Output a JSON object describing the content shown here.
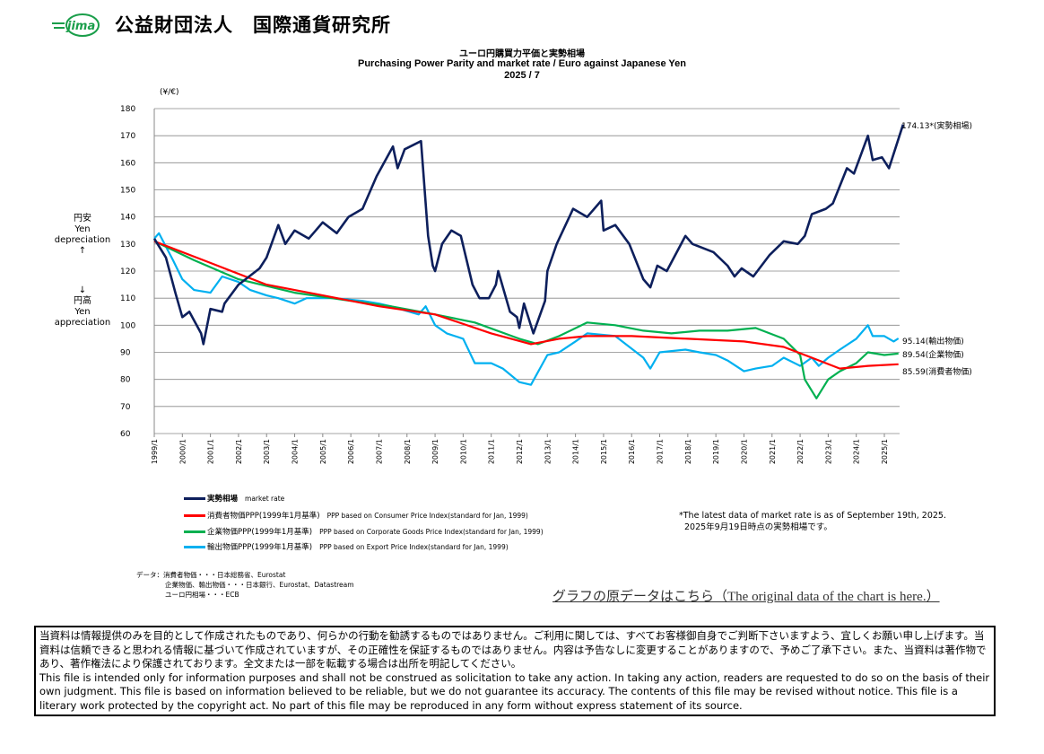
{
  "header": {
    "logo_text": "jima",
    "org_name": "公益財団法人　国際通貨研究所"
  },
  "chart_data": {
    "type": "line",
    "title_ja": "ユーロ円購買力平価と実勢相場",
    "title_en": "Purchasing Power Parity and market rate / Euro against Japanese Yen",
    "date": "2025 / 7",
    "ylabel": "(¥/€)",
    "ylim": [
      60,
      180
    ],
    "yticks": [
      60,
      70,
      80,
      90,
      100,
      110,
      120,
      130,
      140,
      150,
      160,
      170,
      180
    ],
    "xticks": [
      "1999/1",
      "2000/1",
      "2001/1",
      "2002/1",
      "2003/1",
      "2004/1",
      "2005/1",
      "2006/1",
      "2007/1",
      "2008/1",
      "2009/1",
      "2010/1",
      "2011/1",
      "2012/1",
      "2013/1",
      "2014/1",
      "2015/1",
      "2016/1",
      "2017/1",
      "2018/1",
      "2019/1",
      "2020/1",
      "2021/1",
      "2022/1",
      "2023/1",
      "2024/1",
      "2025/1"
    ],
    "grid": true,
    "side_up": {
      "ja": "円安",
      "en": "Yen depreciation",
      "arrow": "↑"
    },
    "side_down": {
      "ja": "円高",
      "en": "Yen appreciation",
      "arrow": "↓"
    },
    "series": [
      {
        "name": "実勢相場",
        "name_en": "market rate",
        "color": "#0d1f5c",
        "end_label": "174.13*(実勢相場)",
        "x": [
          "1999/1",
          "1999/6",
          "1999/10",
          "2000/1",
          "2000/4",
          "2000/9",
          "2000/10",
          "2001/1",
          "2001/6",
          "2001/7",
          "2002/1",
          "2002/4",
          "2002/10",
          "2003/1",
          "2003/6",
          "2003/9",
          "2004/1",
          "2004/7",
          "2004/10",
          "2005/1",
          "2005/7",
          "2005/12",
          "2006/6",
          "2006/12",
          "2007/7",
          "2007/9",
          "2007/12",
          "2008/7",
          "2008/10",
          "2008/12",
          "2009/1",
          "2009/4",
          "2009/8",
          "2009/12",
          "2010/5",
          "2010/8",
          "2010/12",
          "2011/3",
          "2011/4",
          "2011/9",
          "2011/12",
          "2012/1",
          "2012/3",
          "2012/7",
          "2012/12",
          "2013/1",
          "2013/5",
          "2013/12",
          "2014/6",
          "2014/12",
          "2015/1",
          "2015/6",
          "2015/12",
          "2016/6",
          "2016/9",
          "2016/12",
          "2017/4",
          "2017/12",
          "2018/3",
          "2018/12",
          "2019/6",
          "2019/9",
          "2019/12",
          "2020/5",
          "2020/12",
          "2021/6",
          "2021/12",
          "2022/3",
          "2022/6",
          "2022/9",
          "2022/12",
          "2023/3",
          "2023/9",
          "2023/12",
          "2024/6",
          "2024/8",
          "2024/12",
          "2025/3",
          "2025/6",
          "2025/9"
        ],
        "y": [
          132,
          125,
          112,
          103,
          105,
          97,
          93,
          106,
          105,
          108,
          115,
          117,
          121,
          125,
          137,
          130,
          135,
          132,
          135,
          138,
          134,
          140,
          143,
          155,
          166,
          158,
          165,
          168,
          133,
          122,
          120,
          130,
          135,
          133,
          115,
          110,
          110,
          115,
          120,
          105,
          103,
          99,
          108,
          97,
          109,
          120,
          130,
          143,
          140,
          146,
          135,
          137,
          130,
          117,
          114,
          122,
          120,
          133,
          130,
          127,
          122,
          118,
          121,
          118,
          126,
          131,
          130,
          133,
          141,
          142,
          143,
          145,
          158,
          156,
          170,
          161,
          162,
          158,
          166,
          174.13
        ]
      },
      {
        "name": "消費者物価PPP(1999年1月基準)",
        "name_en": "PPP based on Consumer Price Index(standard for Jan, 1999)",
        "color": "#ff0000",
        "end_label": "85.59(消費者物価)",
        "x": [
          "1999/1",
          "2001/1",
          "2003/1",
          "2005/1",
          "2007/1",
          "2009/1",
          "2011/1",
          "2012/6",
          "2013/6",
          "2014/6",
          "2016/1",
          "2018/1",
          "2020/1",
          "2021/6",
          "2022/6",
          "2023/6",
          "2024/6",
          "2025/7"
        ],
        "y": [
          131,
          123,
          115,
          111,
          107,
          104,
          97,
          93,
          95,
          96,
          96,
          95,
          94,
          92,
          88,
          84,
          85,
          85.59
        ]
      },
      {
        "name": "企業物価PPP(1999年1月基準)",
        "name_en": "PPP based on Corporate Goods Price Index(standard for Jan, 1999)",
        "color": "#00b050",
        "end_label": "89.54(企業物価)",
        "x": [
          "1999/1",
          "2000/6",
          "2002/1",
          "2004/1",
          "2006/1",
          "2007/6",
          "2009/1",
          "2010/6",
          "2012/1",
          "2012/9",
          "2013/6",
          "2014/6",
          "2015/6",
          "2016/6",
          "2017/6",
          "2018/6",
          "2019/6",
          "2020/6",
          "2021/6",
          "2022/1",
          "2022/3",
          "2022/8",
          "2023/1",
          "2023/6",
          "2024/1",
          "2024/6",
          "2025/1",
          "2025/7"
        ],
        "y": [
          131,
          124,
          117,
          112,
          109,
          107,
          104,
          101,
          95,
          93,
          96,
          101,
          100,
          98,
          97,
          98,
          98,
          99,
          95,
          89,
          80,
          73,
          80,
          83,
          86,
          90,
          89,
          89.54
        ]
      },
      {
        "name": "輸出物価PPP(1999年1月基準)",
        "name_en": "PPP based on Export Price Index(standard for Jan, 1999)",
        "color": "#00b0f0",
        "end_label": "95.14(輸出物価)",
        "x": [
          "1999/1",
          "1999/3",
          "1999/9",
          "2000/1",
          "2000/6",
          "2001/1",
          "2001/6",
          "2002/1",
          "2002/6",
          "2003/1",
          "2003/6",
          "2004/1",
          "2004/6",
          "2005/6",
          "2006/6",
          "2007/1",
          "2007/6",
          "2008/6",
          "2008/9",
          "2009/1",
          "2009/6",
          "2010/1",
          "2010/6",
          "2011/1",
          "2011/6",
          "2012/1",
          "2012/6",
          "2013/1",
          "2013/6",
          "2014/1",
          "2014/6",
          "2015/6",
          "2016/6",
          "2016/9",
          "2017/1",
          "2017/12",
          "2018/6",
          "2019/1",
          "2019/6",
          "2020/1",
          "2020/6",
          "2021/1",
          "2021/6",
          "2022/1",
          "2022/6",
          "2022/9",
          "2023/1",
          "2023/6",
          "2024/1",
          "2024/6",
          "2024/8",
          "2025/1",
          "2025/5",
          "2025/7"
        ],
        "y": [
          132,
          134,
          124,
          117,
          113,
          112,
          118,
          116,
          113,
          111,
          110,
          108,
          110,
          110,
          109,
          108,
          107,
          104,
          107,
          100,
          97,
          95,
          86,
          86,
          84,
          79,
          78,
          89,
          90,
          94,
          97,
          96,
          88,
          84,
          90,
          91,
          90,
          89,
          87,
          83,
          84,
          85,
          88,
          85,
          88,
          85,
          88,
          91,
          95,
          100,
          96,
          96,
          94,
          95.14
        ]
      }
    ]
  },
  "notes": {
    "line1": "*The latest data of market rate is as of September 19th, 2025.",
    "line2": "2025年9月19日時点の実勢相場です。"
  },
  "sources": {
    "line1": "データ：消費者物価・・・日本総務省、Eurostat",
    "line2": "企業物価、輸出物価・・・日本銀行、Eurostat、Datastream",
    "line3": "ユーロ円相場・・・ECB"
  },
  "link": "グラフの原データはこちら（The original data of the chart is here.）",
  "disclaimer": {
    "ja": "当資料は情報提供のみを目的として作成されたものであり、何らかの行動を勧誘するものではありません。ご利用に関しては、すべてお客様御自身でご判断下さいますよう、宜しくお願い申し上げます。当資料は信頼できると思われる情報に基づいて作成されていますが、その正確性を保証するものではありません。内容は予告なしに変更することがありますので、予めご了承下さい。また、当資料は著作物であり、著作権法により保護されております。全文または一部を転載する場合は出所を明記してください。",
    "en": "This file is intended only for information purposes and shall not be construed as solicitation to take any action. In taking any action, readers are requested to do so on the basis of their own judgment. This file is based on information believed to be reliable, but we do not guarantee its accuracy. The contents of this file may be revised without notice. This file is a literary work protected by the copyright act. No part of this file may be reproduced in any form without express statement of its source."
  }
}
